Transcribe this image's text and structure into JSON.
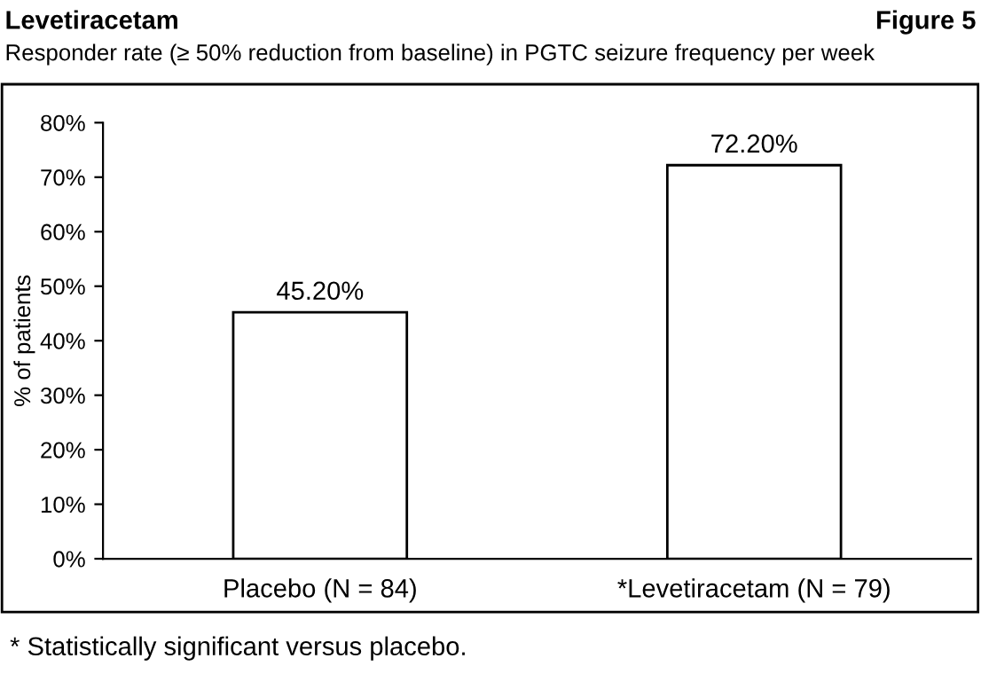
{
  "chart_data": {
    "type": "bar",
    "title": "Levetiracetam",
    "subtitle": "Responder rate (≥ 50% reduction from baseline) in PGTC seizure frequency per week",
    "ylabel": "% of patients",
    "annotations": [
      "Figure 5",
      "* Statistically significant versus placebo."
    ],
    "categories": [
      "Placebo (N = 84)",
      "*Levetiracetam (N = 79)"
    ],
    "values": [
      45.2,
      72.2
    ],
    "color": "#ffffff",
    "value_labels": [
      "45.20%",
      "72.20%"
    ],
    "ylim": [
      0,
      80
    ],
    "yticks": [
      {
        "value": 0,
        "label": "0%"
      },
      {
        "value": 10,
        "label": "10%"
      },
      {
        "value": 20,
        "label": "20%"
      },
      {
        "value": 30,
        "label": "30%"
      },
      {
        "value": 40,
        "label": "40%"
      },
      {
        "value": 50,
        "label": "50%"
      },
      {
        "value": 60,
        "label": "60%"
      },
      {
        "value": 70,
        "label": "70%"
      },
      {
        "value": 80,
        "label": "80%"
      }
    ],
    "grid": false,
    "legend": false
  }
}
